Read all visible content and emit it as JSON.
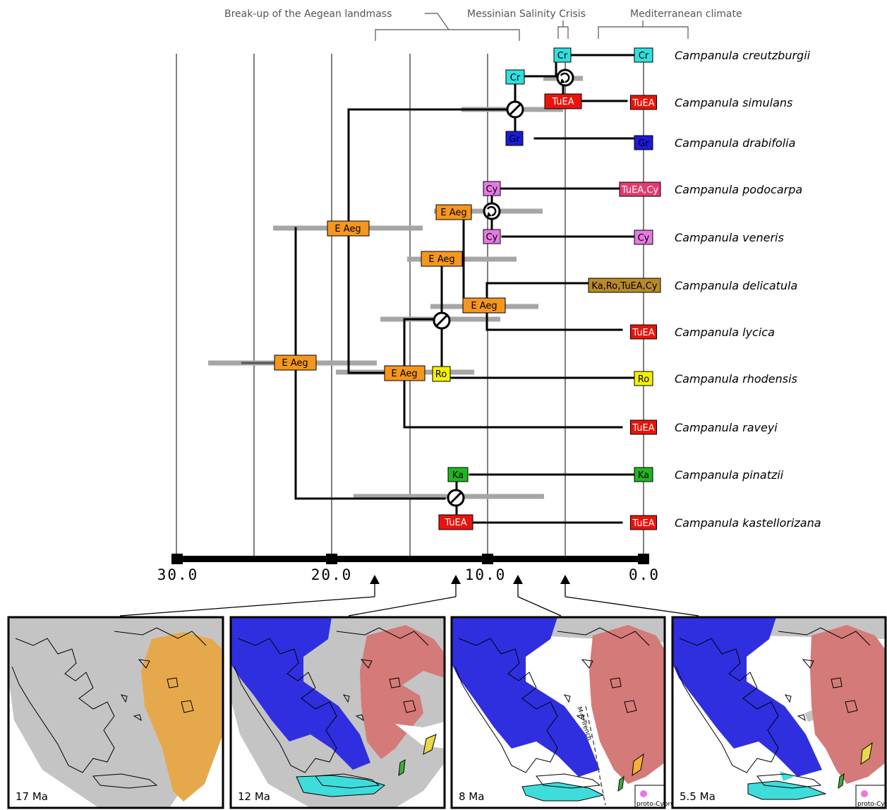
{
  "events": [
    {
      "id": "aegean",
      "label": "Break-up of the Aegean landmass"
    },
    {
      "id": "msc",
      "label": "Messinian Salinity Crisis"
    },
    {
      "id": "med",
      "label": "Mediterranean climate"
    }
  ],
  "axis": {
    "ticks": [
      {
        "value": 30,
        "label": "30.0"
      },
      {
        "value": 20,
        "label": "20.0"
      },
      {
        "value": 10,
        "label": "10.0"
      },
      {
        "value": 0,
        "label": "0.0"
      }
    ],
    "gridlines": [
      30,
      25,
      20,
      15,
      10,
      5,
      0
    ],
    "range": [
      30,
      0
    ]
  },
  "taxa": [
    {
      "name": "Campanula creutzburgii",
      "area": "Cr"
    },
    {
      "name": "Campanula simulans",
      "area": "TuEA"
    },
    {
      "name": "Campanula drabifolia",
      "area": "Gr"
    },
    {
      "name": "Campanula podocarpa",
      "area": "TuEA,Cy"
    },
    {
      "name": "Campanula veneris",
      "area": "Cy"
    },
    {
      "name": "Campanula delicatula",
      "area": "Ka,Ro,TuEA,Cy"
    },
    {
      "name": "Campanula lycica",
      "area": "TuEA"
    },
    {
      "name": "Campanula rhodensis",
      "area": "Ro"
    },
    {
      "name": "Campanula raveyi",
      "area": "TuEA"
    },
    {
      "name": "Campanula pinatzii",
      "area": "Ka"
    },
    {
      "name": "Campanula kastellorizana",
      "area": "TuEA"
    }
  ],
  "area_colors": {
    "Cr": "#33dede",
    "TuEA": "#e8140c",
    "Gr": "#1b1bd6",
    "Cy": "#e37be0",
    "E Aeg": "#f5961e",
    "Ro": "#f5f000",
    "Ka": "#22b522",
    "TuEA,Cy": "#e23c6e",
    "Ka,Ro,TuEA,Cy": "#b88a2a"
  },
  "node_labels": [
    "Cr",
    "Cr",
    "TuEA",
    "Gr",
    "Cy",
    "E Aeg",
    "Cy",
    "E Aeg",
    "E Aeg",
    "E Aeg",
    "E Aeg",
    "Ro",
    "E Aeg",
    "Ka",
    "TuEA"
  ],
  "event_icons": [
    "dispersal-icon",
    "vicariance-icon"
  ],
  "maps": [
    {
      "label": "17 Ma",
      "arrow_at": 17
    },
    {
      "label": "12 Ma",
      "arrow_at": 12
    },
    {
      "label": "8 Ma",
      "arrow_at": 8,
      "trench": "M-A Trench",
      "inset": "proto-Cyprus"
    },
    {
      "label": "5.5 Ma",
      "arrow_at": 5.5,
      "inset": "proto-Cyprus"
    }
  ],
  "map_colors": {
    "land": "#c4c4c4",
    "east_aegean": "#e5a94c",
    "greece": "#2f2fe0",
    "anatolia": "#d47a78",
    "crete": "#3fdcdc",
    "rhodes": "#e8d84a",
    "karpathos": "#3cae3c"
  }
}
